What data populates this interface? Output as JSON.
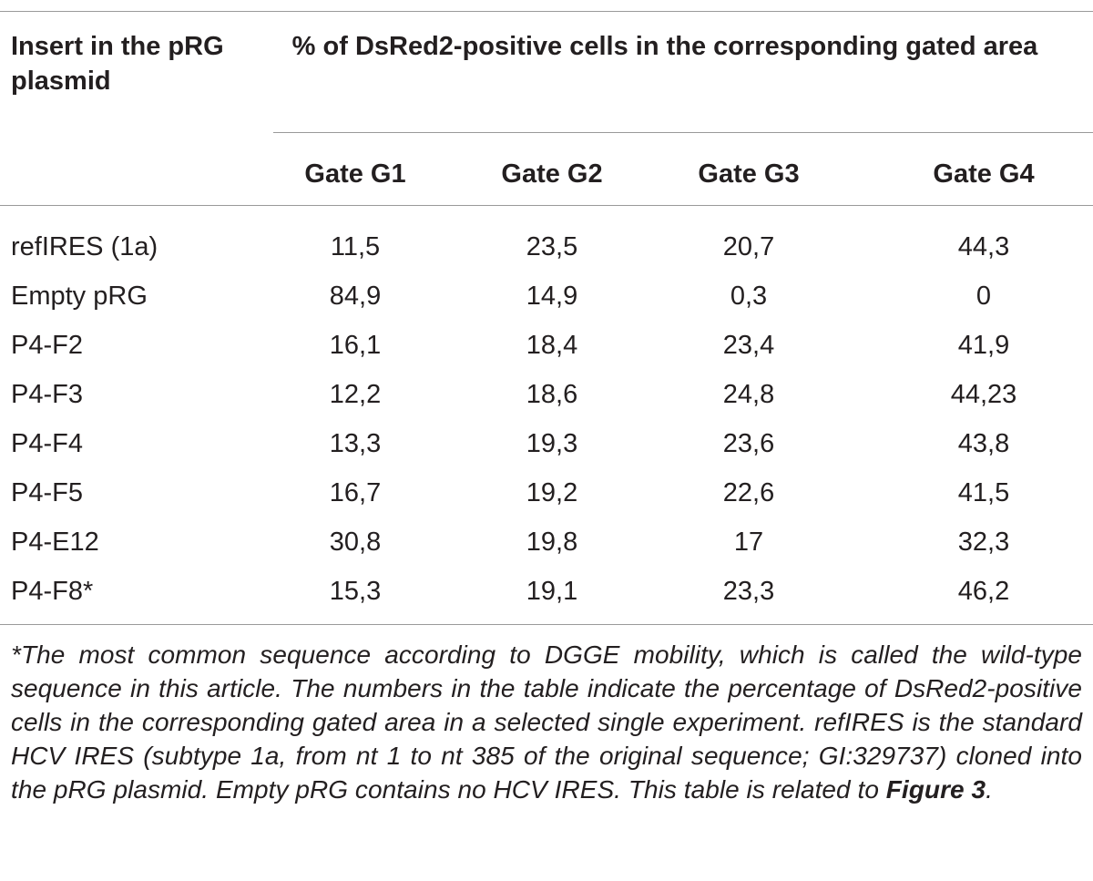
{
  "table": {
    "header": {
      "insert": "Insert in the pRG plasmid",
      "percent": "% of DsRed2-positive cells in the corresponding gated area",
      "gates": [
        "Gate G1",
        "Gate G2",
        "Gate G3",
        "Gate G4"
      ]
    },
    "rows": [
      {
        "label": "refIRES (1a)",
        "values": [
          "11,5",
          "23,5",
          "20,7",
          "44,3"
        ]
      },
      {
        "label": "Empty pRG",
        "values": [
          "84,9",
          "14,9",
          "0,3",
          "0"
        ]
      },
      {
        "label": "P4-F2",
        "values": [
          "16,1",
          "18,4",
          "23,4",
          "41,9"
        ]
      },
      {
        "label": "P4-F3",
        "values": [
          "12,2",
          "18,6",
          "24,8",
          "44,23"
        ]
      },
      {
        "label": "P4-F4",
        "values": [
          "13,3",
          "19,3",
          "23,6",
          "43,8"
        ]
      },
      {
        "label": "P4-F5",
        "values": [
          "16,7",
          "19,2",
          "22,6",
          "41,5"
        ]
      },
      {
        "label": "P4-E12",
        "values": [
          "30,8",
          "19,8",
          "17",
          "32,3"
        ]
      },
      {
        "label": "P4-F8*",
        "values": [
          "15,3",
          "19,1",
          "23,3",
          "46,2"
        ]
      }
    ]
  },
  "footnote": {
    "text": "*The most common sequence according to DGGE mobility, which is called the wild-type sequence in this article. The numbers in the table indicate the percentage of DsRed2-positive cells in the corresponding gated area in a selected single experiment. refIRES is the standard HCV IRES (subtype 1a, from nt 1 to nt 385 of the original sequence; GI:329737) cloned into the pRG plasmid. Empty pRG contains no HCV IRES. This table is related to ",
    "figure_ref": "Figure 3",
    "end": "."
  }
}
